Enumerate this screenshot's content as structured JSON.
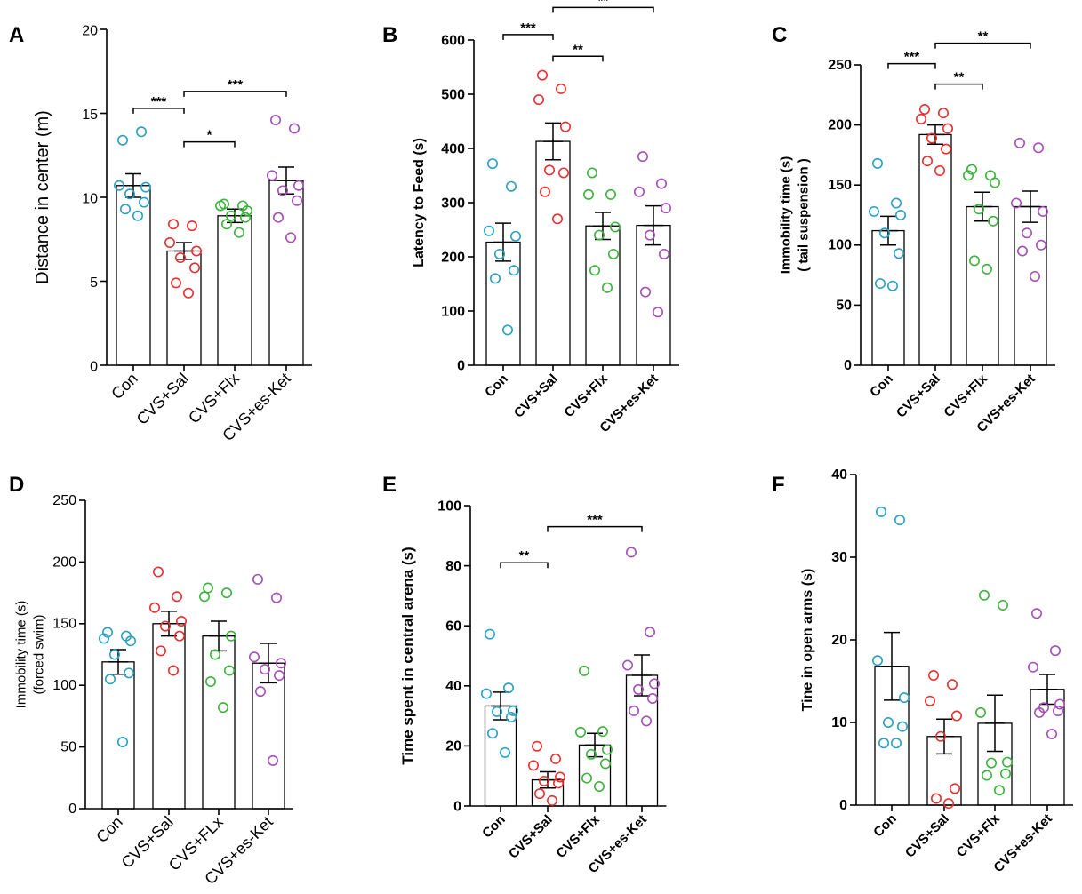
{
  "chart_data": [
    {
      "type": "bar",
      "panel": "A",
      "ylabel": "Distance in center (m)",
      "ylim": [
        0,
        20
      ],
      "yticks": [
        0,
        5,
        10,
        15,
        20
      ],
      "categories": [
        "Con",
        "CVS+Sal",
        "CVS+Flx",
        "CVS+es-Ket"
      ],
      "means": [
        10.7,
        6.8,
        8.9,
        11.0
      ],
      "sem": [
        0.7,
        0.5,
        0.4,
        0.8
      ],
      "points": [
        [
          13.4,
          13.9,
          10.7,
          10.6,
          10.2,
          9.7,
          9.3,
          8.9
        ],
        [
          8.4,
          8.3,
          7.3,
          6.8,
          6.4,
          5.8,
          4.9,
          4.3
        ],
        [
          9.6,
          9.5,
          9.5,
          9.2,
          8.9,
          8.8,
          8.4,
          7.9
        ],
        [
          14.6,
          14.1,
          11.3,
          10.7,
          10.4,
          9.8,
          8.8,
          7.6
        ]
      ],
      "significance": [
        {
          "from": 0,
          "to": 1,
          "label": "***",
          "y": 15.3
        },
        {
          "from": 1,
          "to": 2,
          "label": "*",
          "y": 13.3
        },
        {
          "from": 1,
          "to": 3,
          "label": "***",
          "y": 16.3
        }
      ]
    },
    {
      "type": "bar",
      "panel": "B",
      "ylabel": "Latency to Feed (s)",
      "ylim": [
        0,
        600
      ],
      "yticks": [
        0,
        100,
        200,
        300,
        400,
        500,
        600
      ],
      "categories": [
        "Con",
        "CVS+Sal",
        "CVS+Flx",
        "CVS+es-Ket"
      ],
      "means": [
        227,
        413,
        257,
        258
      ],
      "sem": [
        35,
        34,
        25,
        36
      ],
      "points": [
        [
          372,
          330,
          248,
          238,
          205,
          175,
          160,
          65
        ],
        [
          535,
          510,
          490,
          440,
          360,
          355,
          320,
          270
        ],
        [
          355,
          315,
          315,
          255,
          240,
          205,
          175,
          143
        ],
        [
          385,
          335,
          320,
          290,
          240,
          205,
          135,
          98
        ]
      ],
      "significance": [
        {
          "from": 0,
          "to": 1,
          "label": "***",
          "y": 610
        },
        {
          "from": 1,
          "to": 2,
          "label": "**",
          "y": 570
        },
        {
          "from": 1,
          "to": 3,
          "label": "**",
          "y": 660
        }
      ]
    },
    {
      "type": "bar",
      "panel": "C",
      "ylabel": "Immobility time (s)",
      "ylabel2": "( tail suspension )",
      "ylim": [
        0,
        250
      ],
      "yticks": [
        0,
        50,
        100,
        150,
        200,
        250
      ],
      "categories": [
        "Con",
        "CVS+Sal",
        "CVS+Flx",
        "CVS+es-Ket"
      ],
      "means": [
        112,
        192,
        132,
        132
      ],
      "sem": [
        12,
        8,
        12,
        13
      ],
      "points": [
        [
          168,
          135,
          128,
          125,
          110,
          93,
          68,
          66
        ],
        [
          213,
          210,
          205,
          197,
          189,
          180,
          170,
          162
        ],
        [
          163,
          158,
          158,
          152,
          130,
          120,
          87,
          80
        ],
        [
          185,
          181,
          135,
          128,
          110,
          100,
          95,
          74
        ]
      ],
      "significance": [
        {
          "from": 0,
          "to": 1,
          "label": "***",
          "y": 251
        },
        {
          "from": 1,
          "to": 2,
          "label": "**",
          "y": 234
        },
        {
          "from": 1,
          "to": 3,
          "label": "**",
          "y": 268
        }
      ]
    },
    {
      "type": "bar",
      "panel": "D",
      "ylabel": "Immobility time (s)",
      "ylabel2": "(forced swim)",
      "ylim": [
        0,
        250
      ],
      "yticks": [
        0,
        50,
        100,
        150,
        200,
        250
      ],
      "categories": [
        "Con",
        "CVS+Sal",
        "CVS+FLx",
        "CVS+es-Ket"
      ],
      "means": [
        119,
        150,
        140,
        118
      ],
      "sem": [
        10,
        10,
        12,
        16
      ],
      "points": [
        [
          143,
          140,
          138,
          136,
          125,
          110,
          105,
          54
        ],
        [
          192,
          172,
          163,
          152,
          148,
          140,
          128,
          112
        ],
        [
          179,
          175,
          172,
          140,
          125,
          112,
          103,
          82
        ],
        [
          186,
          171,
          123,
          118,
          113,
          108,
          95,
          39
        ]
      ],
      "significance": []
    },
    {
      "type": "bar",
      "panel": "E",
      "ylabel": "Time spent in central arena (s)",
      "ylim": [
        0,
        100
      ],
      "yticks": [
        0,
        20,
        40,
        60,
        80,
        100
      ],
      "categories": [
        "Con",
        "CVS+Sal",
        "CVS+Flx",
        "CVS+es-Ket"
      ],
      "means": [
        33.3,
        8.7,
        20.3,
        43.5
      ],
      "sem": [
        4.6,
        2.7,
        3.9,
        6.8
      ],
      "points": [
        [
          57.2,
          39.3,
          37.4,
          31.7,
          31.4,
          29.6,
          24.2,
          17.8
        ],
        [
          19.9,
          15.7,
          13.5,
          9.6,
          8.3,
          7.6,
          4.1,
          1.8
        ],
        [
          45.0,
          24.8,
          24.6,
          18.8,
          17.2,
          14.1,
          9.3,
          6.5
        ],
        [
          84.5,
          57.9,
          46.9,
          40.7,
          38.8,
          35.8,
          31.7,
          28.3
        ]
      ],
      "significance": [
        {
          "from": 0,
          "to": 1,
          "label": "**",
          "y": 81
        },
        {
          "from": 1,
          "to": 3,
          "label": "***",
          "y": 93
        }
      ]
    },
    {
      "type": "bar",
      "panel": "F",
      "ylabel": "Tine in open arms  (s)",
      "ylim": [
        0,
        40
      ],
      "yticks": [
        0,
        10,
        20,
        30,
        40
      ],
      "categories": [
        "Con",
        "CVS+Sal",
        "CVS+Flx",
        "CVS+es-Ket"
      ],
      "means": [
        16.8,
        8.3,
        9.9,
        14.0
      ],
      "sem": [
        4.1,
        2.1,
        3.4,
        1.8
      ],
      "points": [
        [
          35.5,
          34.5,
          17.5,
          13.0,
          10.0,
          9.5,
          7.5,
          7.5
        ],
        [
          15.7,
          14.6,
          12.6,
          10.8,
          8.3,
          2.0,
          0.8,
          0.2
        ],
        [
          25.4,
          24.2,
          11.2,
          5.2,
          5.1,
          3.8,
          3.6,
          1.8
        ],
        [
          23.2,
          18.7,
          16.7,
          12.2,
          11.8,
          11.4,
          11.2,
          8.6
        ]
      ],
      "significance": []
    }
  ],
  "style": {
    "group_colors": [
      "#2aa0c4",
      "#e83030",
      "#3cb33c",
      "#a64fb8"
    ]
  }
}
